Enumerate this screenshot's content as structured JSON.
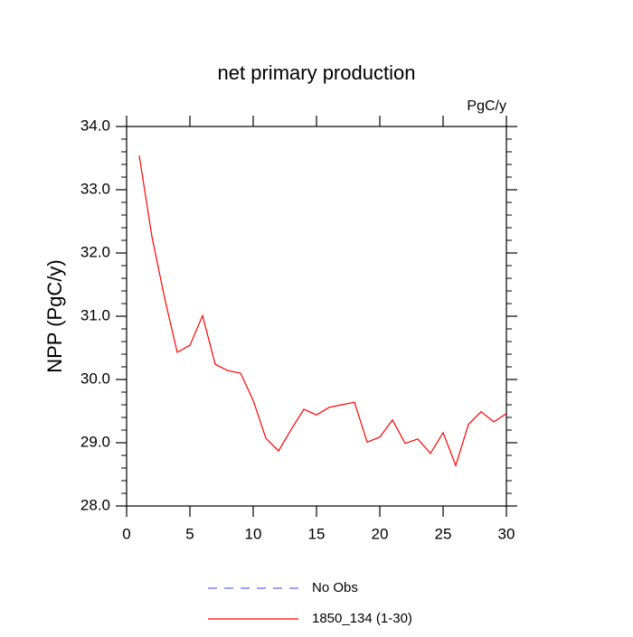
{
  "chart_data": {
    "type": "line",
    "title": "net primary production",
    "subtitle": "PgC/y",
    "y_label": "NPP  (PgC/y)",
    "x": [
      1,
      2,
      3,
      4,
      5,
      6,
      7,
      8,
      9,
      10,
      11,
      12,
      13,
      14,
      15,
      16,
      17,
      18,
      19,
      20,
      21,
      22,
      23,
      24,
      25,
      26,
      27,
      28,
      29,
      30
    ],
    "series": [
      {
        "name": "No Obs",
        "color": "#6666ff",
        "dashed": true,
        "values": [
          null,
          null,
          null,
          null,
          null,
          null,
          null,
          null,
          null,
          null,
          null,
          null,
          null,
          null,
          null,
          null,
          null,
          null,
          null,
          null,
          null,
          null,
          null,
          null,
          null,
          null,
          null,
          null,
          null,
          null
        ]
      },
      {
        "name": "1850_134 (1-30)",
        "color": "#ff0000",
        "dashed": false,
        "values": [
          33.54,
          32.26,
          31.29,
          30.43,
          30.54,
          31.01,
          30.24,
          30.14,
          30.1,
          29.67,
          29.07,
          28.87,
          29.21,
          29.53,
          29.44,
          29.56,
          29.6,
          29.64,
          29.01,
          29.09,
          29.36,
          28.99,
          29.06,
          28.83,
          29.16,
          28.64,
          29.29,
          29.49,
          29.33,
          29.46
        ]
      }
    ],
    "xlim": [
      0,
      30
    ],
    "xticks": [
      0,
      5,
      10,
      15,
      20,
      25,
      30
    ],
    "ylim": [
      28,
      34
    ],
    "yticks": [
      {
        "value": 28,
        "label": "28.0"
      },
      {
        "value": 29,
        "label": "29.0"
      },
      {
        "value": 30,
        "label": "30.0"
      },
      {
        "value": 31,
        "label": "31.0"
      },
      {
        "value": 32,
        "label": "32.0"
      },
      {
        "value": 33,
        "label": "33.0"
      },
      {
        "value": 34,
        "label": "34.0"
      }
    ],
    "y_minor_per_interval": 4,
    "legend": "bottom"
  }
}
